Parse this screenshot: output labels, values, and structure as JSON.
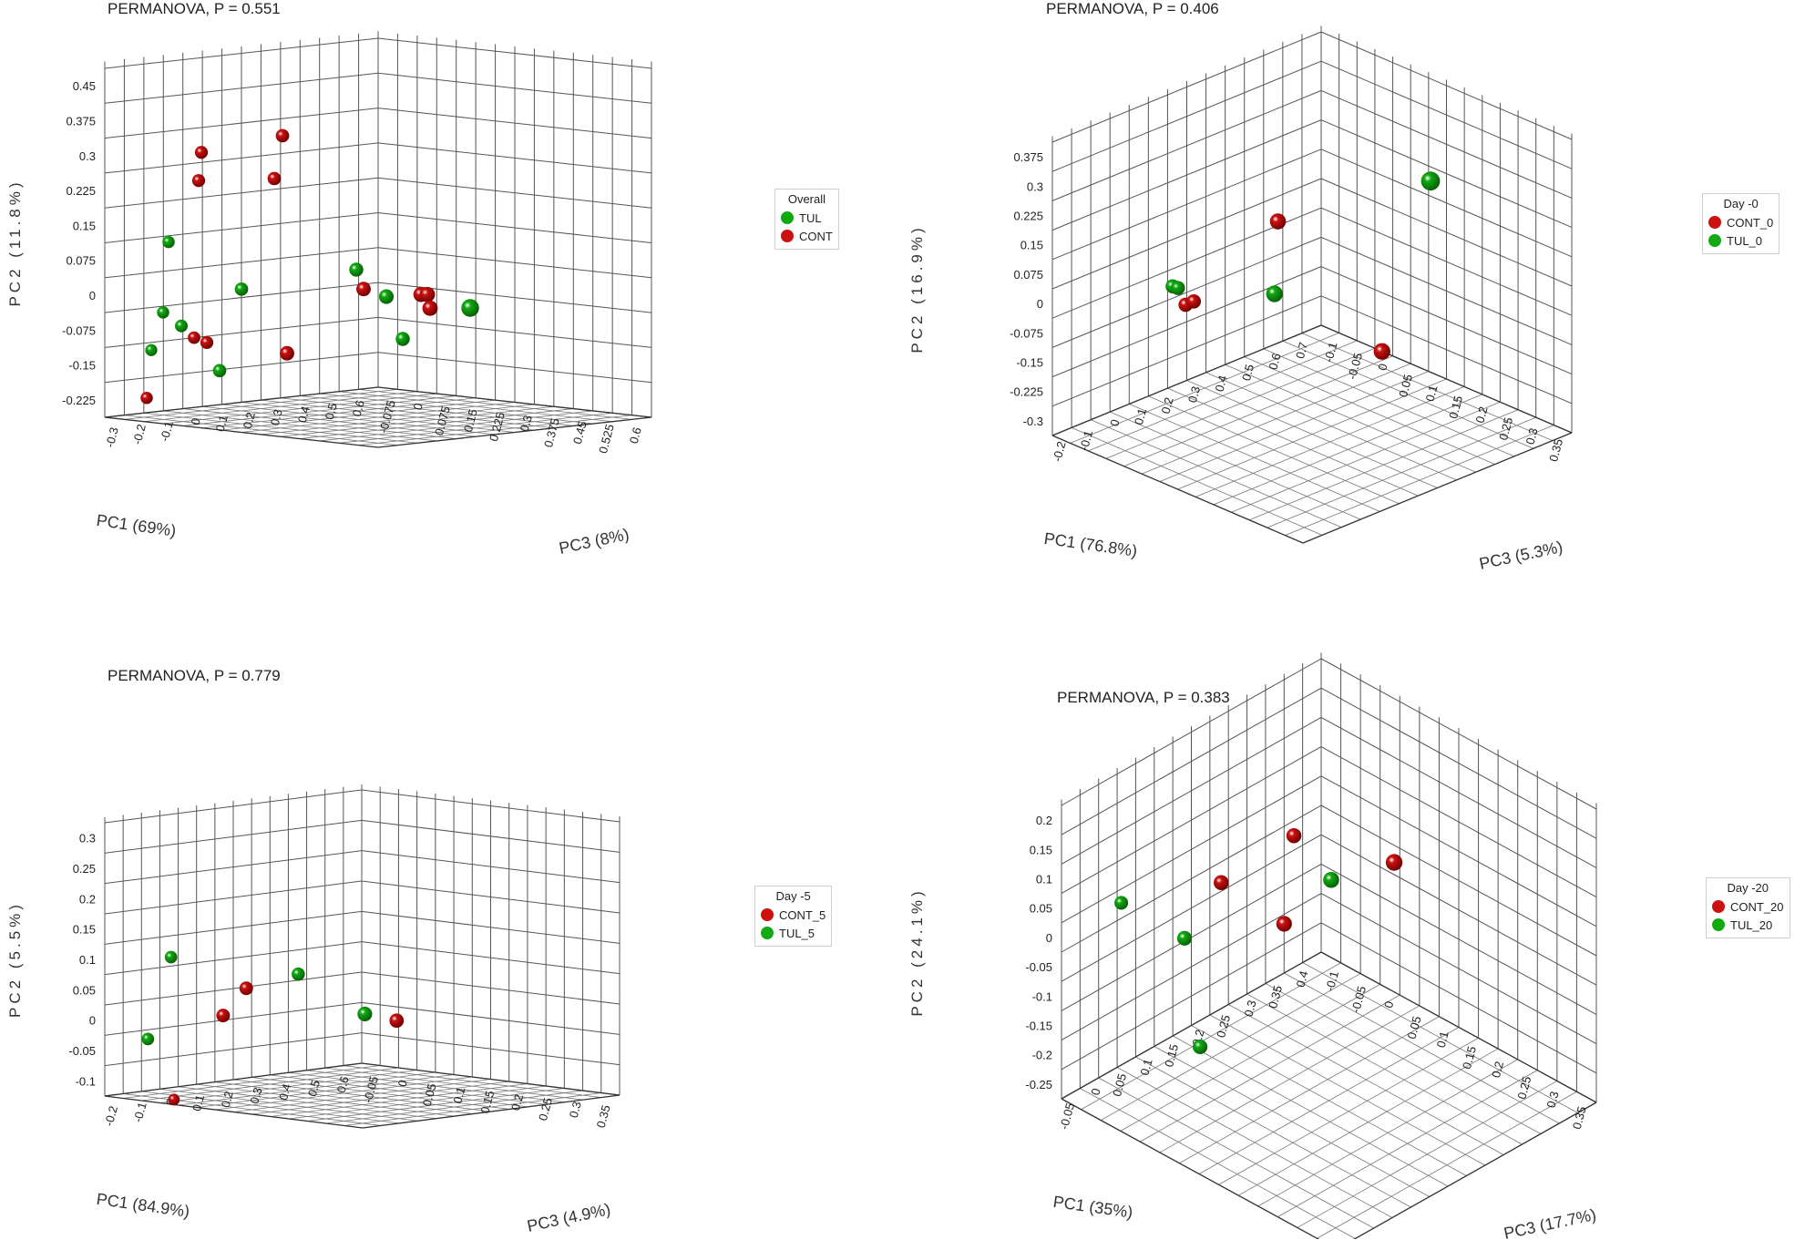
{
  "colors": {
    "red": "#cc1111",
    "green": "#11aa11"
  },
  "chart_data": [
    {
      "type": "scatter",
      "title": "PERMANOVA, P = 0.551",
      "xlabel": "PC1 (69%)",
      "ylabel": "PC2 (11.8%)",
      "zlabel": "PC3 (8%)",
      "x_ticks": [
        "-0.3",
        "-0.2",
        "-0.1",
        "0",
        "0.1",
        "0.2",
        "0.3",
        "0.4",
        "0.5",
        "0.6"
      ],
      "y_ticks": [
        "-0.225",
        "-0.15",
        "-0.075",
        "0",
        "0.075",
        "0.15",
        "0.225",
        "0.3",
        "0.375",
        "0.45"
      ],
      "z_ticks": [
        "-0.075",
        "0",
        "0.075",
        "0.15",
        "0.225",
        "0.3",
        "0.375",
        "0.45",
        "0.525",
        "0.6"
      ],
      "legend_title": "Overall",
      "series": [
        {
          "name": "TUL",
          "color": "#11aa11",
          "points": [
            [
              -0.2,
              0.11,
              -0.05
            ],
            [
              -0.22,
              -0.04,
              -0.05
            ],
            [
              -0.18,
              -0.07,
              -0.03
            ],
            [
              -0.25,
              -0.12,
              -0.06
            ],
            [
              -0.08,
              -0.17,
              0.0
            ],
            [
              0.0,
              0.0,
              0.0
            ],
            [
              0.38,
              0.02,
              0.03
            ],
            [
              0.45,
              -0.04,
              0.06
            ],
            [
              0.57,
              -0.06,
              0.2
            ],
            [
              0.55,
              -0.14,
              0.03
            ]
          ]
        },
        {
          "name": "CONT",
          "color": "#cc1111",
          "points": [
            [
              -0.12,
              0.3,
              -0.02
            ],
            [
              -0.13,
              0.24,
              -0.02
            ],
            [
              0.12,
              0.23,
              0.0
            ],
            [
              0.15,
              0.32,
              0.0
            ],
            [
              -0.12,
              -0.1,
              -0.04
            ],
            [
              -0.1,
              -0.11,
              -0.02
            ],
            [
              0.1,
              -0.14,
              0.05
            ],
            [
              -0.28,
              -0.22,
              -0.05
            ],
            [
              0.38,
              -0.02,
              0.05
            ],
            [
              0.55,
              -0.04,
              0.08
            ],
            [
              0.56,
              -0.04,
              0.09
            ],
            [
              0.57,
              -0.07,
              0.09
            ]
          ]
        }
      ]
    },
    {
      "type": "scatter",
      "title": "PERMANOVA, P = 0.406",
      "xlabel": "PC1 (76.8%)",
      "ylabel": "PC2 (16.9%)",
      "zlabel": "PC3 (5.3%)",
      "x_ticks": [
        "-0.2",
        "-0.1",
        "0",
        "0.1",
        "0.2",
        "0.3",
        "0.4",
        "0.5",
        "0.6",
        "0.7"
      ],
      "y_ticks": [
        "-0.3",
        "-0.225",
        "-0.15",
        "-0.075",
        "0",
        "0.075",
        "0.15",
        "0.225",
        "0.3",
        "0.375"
      ],
      "z_ticks": [
        "-0.1",
        "-0.05",
        "0",
        "0.05",
        "0.1",
        "0.15",
        "0.2",
        "0.25",
        "0.3",
        "0.35"
      ],
      "legend_title": "Day -0",
      "series": [
        {
          "name": "CONT_0",
          "color": "#cc1111",
          "points": [
            [
              0.05,
              -0.03,
              -0.02
            ],
            [
              0.08,
              -0.03,
              -0.02
            ],
            [
              0.3,
              0.14,
              0.03
            ],
            [
              0.65,
              -0.28,
              0.05
            ]
          ]
        },
        {
          "name": "TUL_0",
          "color": "#11aa11",
          "points": [
            [
              0.02,
              0.02,
              -0.03
            ],
            [
              0.04,
              0.01,
              -0.03
            ],
            [
              0.25,
              -0.02,
              0.05
            ],
            [
              0.7,
              0.18,
              0.12
            ]
          ]
        }
      ]
    },
    {
      "type": "scatter",
      "title": "PERMANOVA, P = 0.779",
      "xlabel": "PC1 (84.9%)",
      "ylabel": "PC2 (5.5%)",
      "zlabel": "PC3 (4.9%)",
      "x_ticks": [
        "-0.2",
        "-0.1",
        "0",
        "0.1",
        "0.2",
        "0.3",
        "0.4",
        "0.5",
        "0.6"
      ],
      "y_ticks": [
        "-0.1",
        "-0.05",
        "0",
        "0.05",
        "0.1",
        "0.15",
        "0.2",
        "0.25",
        "0.3"
      ],
      "z_ticks": [
        "-0.05",
        "0",
        "0.05",
        "0.1",
        "0.15",
        "0.2",
        "0.25",
        "0.3",
        "0.35"
      ],
      "legend_title": "Day -5",
      "series": [
        {
          "name": "CONT_5",
          "color": "#cc1111",
          "points": [
            [
              0.1,
              0.04,
              0.0
            ],
            [
              0.02,
              0.0,
              0.0
            ],
            [
              0.58,
              -0.04,
              0.02
            ],
            [
              -0.05,
              -0.14,
              -0.05
            ]
          ]
        },
        {
          "name": "TUL_5",
          "color": "#11aa11",
          "points": [
            [
              -0.1,
              0.1,
              -0.03
            ],
            [
              -0.18,
              -0.03,
              -0.03
            ],
            [
              0.3,
              0.05,
              -0.01
            ],
            [
              0.45,
              -0.02,
              0.03
            ]
          ]
        }
      ]
    },
    {
      "type": "scatter",
      "title": "PERMANOVA, P = 0.383",
      "xlabel": "PC1 (35%)",
      "ylabel": "PC2 (24.1%)",
      "zlabel": "PC3 (17.7%)",
      "x_ticks": [
        "-0.05",
        "0",
        "0.05",
        "0.1",
        "0.15",
        "0.2",
        "0.25",
        "0.3",
        "0.35",
        "0.4"
      ],
      "y_ticks": [
        "-0.25",
        "-0.2",
        "-0.15",
        "-0.1",
        "-0.05",
        "0",
        "0.05",
        "0.1",
        "0.15",
        "0.2"
      ],
      "z_ticks": [
        "-0.1",
        "-0.05",
        "0",
        "0.05",
        "0.1",
        "0.15",
        "0.2",
        "0.25",
        "0.3",
        "0.35"
      ],
      "legend_title": "Day -20",
      "series": [
        {
          "name": "CONT_20",
          "color": "#cc1111",
          "points": [
            [
              0.1,
              0.07,
              0.0
            ],
            [
              0.24,
              0.08,
              0.0
            ],
            [
              0.2,
              -0.04,
              0.02
            ],
            [
              0.38,
              -0.01,
              0.05
            ]
          ]
        },
        {
          "name": "TUL_20",
          "color": "#11aa11",
          "points": [
            [
              -0.05,
              0.09,
              -0.04
            ],
            [
              0.04,
              0.0,
              -0.01
            ],
            [
              0.28,
              0.0,
              0.03
            ],
            [
              0.07,
              -0.2,
              -0.01
            ]
          ]
        }
      ]
    }
  ]
}
